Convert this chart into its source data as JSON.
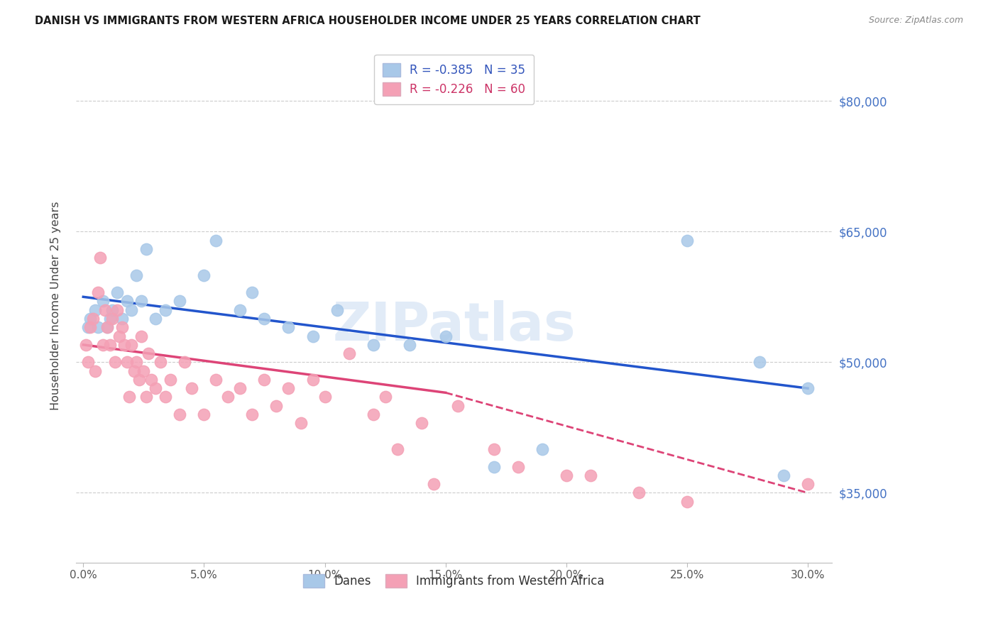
{
  "title": "DANISH VS IMMIGRANTS FROM WESTERN AFRICA HOUSEHOLDER INCOME UNDER 25 YEARS CORRELATION CHART",
  "source": "Source: ZipAtlas.com",
  "ylabel": "Householder Income Under 25 years",
  "xlabel_ticks": [
    "0.0%",
    "5.0%",
    "10.0%",
    "15.0%",
    "20.0%",
    "25.0%",
    "30.0%"
  ],
  "yticks": [
    35000,
    50000,
    65000,
    80000
  ],
  "ytick_labels": [
    "$35,000",
    "$50,000",
    "$65,000",
    "$80,000"
  ],
  "ylim": [
    27000,
    86000
  ],
  "xlim": [
    -0.3,
    31.0
  ],
  "danes_R": -0.385,
  "danes_N": 35,
  "immigrants_R": -0.226,
  "immigrants_N": 60,
  "legend_label_danes": "Danes",
  "legend_label_immigrants": "Immigrants from Western Africa",
  "danes_color": "#a8c8e8",
  "immigrants_color": "#f4a0b5",
  "trend_danes_color": "#2255cc",
  "trend_immigrants_color": "#dd4477",
  "watermark": "ZIPatlas",
  "danes_x": [
    0.2,
    0.3,
    0.5,
    0.6,
    0.8,
    1.0,
    1.1,
    1.2,
    1.4,
    1.6,
    1.8,
    2.0,
    2.2,
    2.4,
    2.6,
    3.0,
    3.4,
    4.0,
    5.0,
    5.5,
    6.5,
    7.0,
    7.5,
    8.5,
    9.5,
    10.5,
    12.0,
    13.5,
    15.0,
    17.0,
    19.0,
    25.0,
    28.0,
    29.0,
    30.0
  ],
  "danes_y": [
    54000,
    55000,
    56000,
    54000,
    57000,
    54000,
    55000,
    56000,
    58000,
    55000,
    57000,
    56000,
    60000,
    57000,
    63000,
    55000,
    56000,
    57000,
    60000,
    64000,
    56000,
    58000,
    55000,
    54000,
    53000,
    56000,
    52000,
    52000,
    53000,
    38000,
    40000,
    64000,
    50000,
    37000,
    47000
  ],
  "immigrants_x": [
    0.1,
    0.2,
    0.3,
    0.4,
    0.5,
    0.6,
    0.7,
    0.8,
    0.9,
    1.0,
    1.1,
    1.2,
    1.3,
    1.4,
    1.5,
    1.6,
    1.7,
    1.8,
    1.9,
    2.0,
    2.1,
    2.2,
    2.3,
    2.4,
    2.5,
    2.6,
    2.7,
    2.8,
    3.0,
    3.2,
    3.4,
    3.6,
    4.0,
    4.2,
    4.5,
    5.0,
    5.5,
    6.0,
    6.5,
    7.0,
    7.5,
    8.0,
    8.5,
    9.0,
    9.5,
    10.0,
    11.0,
    12.0,
    12.5,
    13.0,
    14.0,
    14.5,
    15.5,
    17.0,
    18.0,
    20.0,
    21.0,
    23.0,
    25.0,
    30.0
  ],
  "immigrants_y": [
    52000,
    50000,
    54000,
    55000,
    49000,
    58000,
    62000,
    52000,
    56000,
    54000,
    52000,
    55000,
    50000,
    56000,
    53000,
    54000,
    52000,
    50000,
    46000,
    52000,
    49000,
    50000,
    48000,
    53000,
    49000,
    46000,
    51000,
    48000,
    47000,
    50000,
    46000,
    48000,
    44000,
    50000,
    47000,
    44000,
    48000,
    46000,
    47000,
    44000,
    48000,
    45000,
    47000,
    43000,
    48000,
    46000,
    51000,
    44000,
    46000,
    40000,
    43000,
    36000,
    45000,
    40000,
    38000,
    37000,
    37000,
    35000,
    34000,
    36000
  ],
  "trend_danes_x0": 0,
  "trend_danes_y0": 57500,
  "trend_danes_x1": 30,
  "trend_danes_y1": 47000,
  "trend_imm_solid_x0": 0,
  "trend_imm_solid_y0": 52000,
  "trend_imm_solid_x1": 15,
  "trend_imm_solid_y1": 46500,
  "trend_imm_dash_x0": 15,
  "trend_imm_dash_y0": 46500,
  "trend_imm_dash_x1": 30,
  "trend_imm_dash_y1": 35000
}
